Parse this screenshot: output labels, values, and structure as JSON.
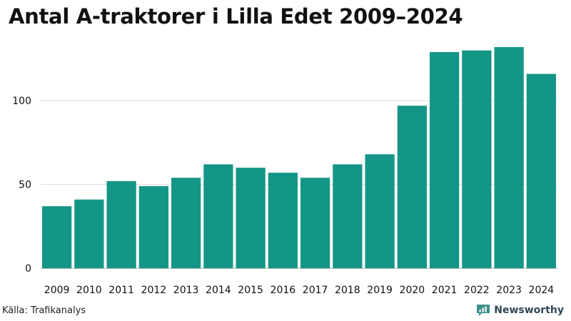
{
  "header": {
    "title": "Antal A-traktorer i Lilla Edet 2009–2024"
  },
  "footer": {
    "source": "Källa: Trafikanalys",
    "brand": "Newsworthy"
  },
  "colors": {
    "bar": "#149687",
    "grid": "#dddddd",
    "axis": "#bbbbbb",
    "brand": "#2f4858",
    "logo": "#3f8f8a"
  },
  "chart_data": {
    "type": "bar",
    "title": "Antal A-traktorer i Lilla Edet 2009–2024",
    "xlabel": "",
    "ylabel": "",
    "categories": [
      "2009",
      "2010",
      "2011",
      "2012",
      "2013",
      "2014",
      "2015",
      "2016",
      "2017",
      "2018",
      "2019",
      "2020",
      "2021",
      "2022",
      "2023",
      "2024"
    ],
    "values": [
      37,
      41,
      52,
      49,
      54,
      62,
      60,
      57,
      54,
      62,
      68,
      97,
      129,
      130,
      132,
      116
    ],
    "ylim": [
      0,
      132
    ],
    "yticks": [
      0,
      50,
      100
    ],
    "grid": true,
    "legend": "none"
  }
}
